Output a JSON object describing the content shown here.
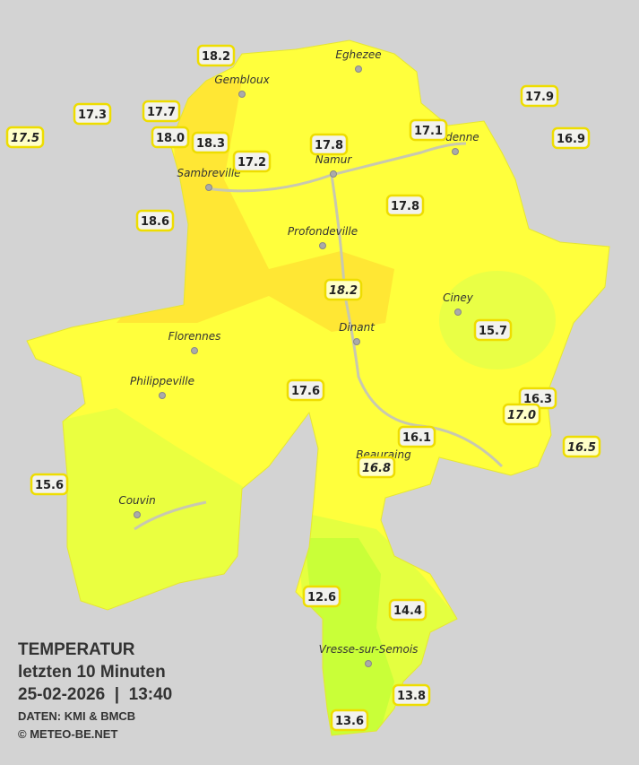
{
  "stations": [
    {
      "value": "18.2"
    },
    {
      "value": "17.3"
    },
    {
      "value": "17.7"
    },
    {
      "value": "17.5"
    },
    {
      "value": "18.0"
    },
    {
      "value": "18.3"
    },
    {
      "value": "17.2"
    },
    {
      "value": "17.8"
    },
    {
      "value": "17.1"
    },
    {
      "value": "17.9"
    },
    {
      "value": "16.9"
    },
    {
      "value": "18.6"
    },
    {
      "value": "17.8"
    },
    {
      "value": "18.2"
    },
    {
      "value": "15.7"
    },
    {
      "value": "17.6"
    },
    {
      "value": "16.3"
    },
    {
      "value": "17.0"
    },
    {
      "value": "16.1"
    },
    {
      "value": "16.5"
    },
    {
      "value": "16.8"
    },
    {
      "value": "15.6"
    },
    {
      "value": "12.6"
    },
    {
      "value": "14.4"
    },
    {
      "value": "13.8"
    },
    {
      "value": "13.6"
    }
  ],
  "cities": [
    "Eghezee",
    "Gembloux",
    "Andenne",
    "Namur",
    "Sambreville",
    "Profondeville",
    "Ciney",
    "Dinant",
    "Florennes",
    "Philippeville",
    "Beauraing",
    "Couvin",
    "Vresse-sur-Semois"
  ],
  "legend": {
    "title": "TEMPERATUR",
    "period": "letzten 10 Minuten",
    "timestamp": "25-02-2026  |  13:40",
    "source": "DATEN: KMI & BMCB",
    "copyright": "© METEO-BE.NET"
  }
}
